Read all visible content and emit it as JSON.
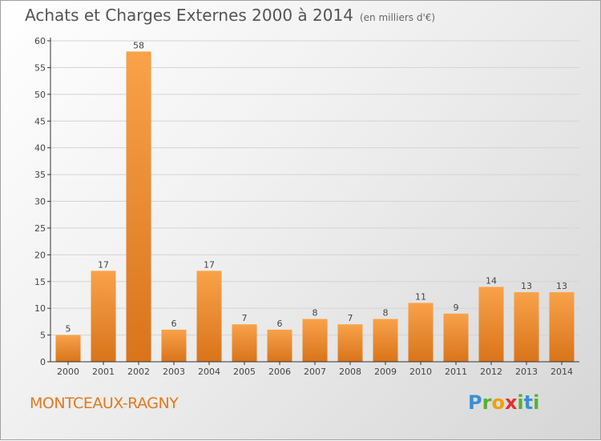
{
  "header": {
    "title": "Achats et Charges Externes 2000 à 2014",
    "subtitle": "(en milliers d'€)"
  },
  "footer": {
    "city": "MONTCEAUX-RAGNY",
    "logo": "Proxiti"
  },
  "colors": {
    "bar_light": "#f8a24a",
    "bar_dark": "#d9741a",
    "axis": "#333333",
    "grid": "#d4d4d4"
  },
  "chart_data": {
    "type": "bar",
    "title": "Achats et Charges Externes 2000 à 2014",
    "subtitle": "(en milliers d'€)",
    "xlabel": "",
    "ylabel": "",
    "categories": [
      "2000",
      "2001",
      "2002",
      "2003",
      "2004",
      "2005",
      "2006",
      "2007",
      "2008",
      "2009",
      "2010",
      "2011",
      "2012",
      "2013",
      "2014"
    ],
    "values": [
      5,
      17,
      58,
      6,
      17,
      7,
      6,
      8,
      7,
      8,
      11,
      9,
      14,
      13,
      13
    ],
    "ylim": [
      0,
      60
    ],
    "yticks": [
      0,
      5,
      10,
      15,
      20,
      25,
      30,
      35,
      40,
      45,
      50,
      55,
      60
    ],
    "grid": true,
    "data_labels": true
  }
}
